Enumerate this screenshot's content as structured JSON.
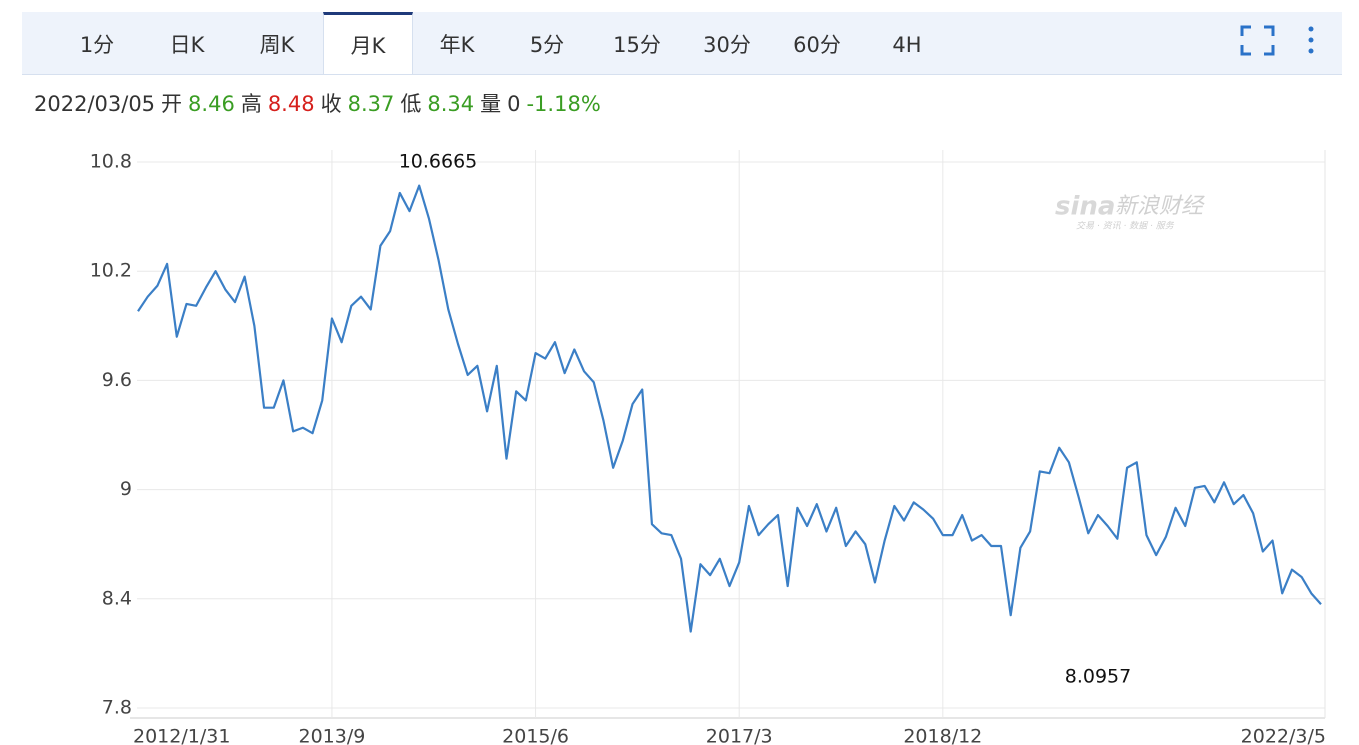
{
  "tabs": [
    "1分",
    "日K",
    "周K",
    "月K",
    "年K",
    "5分",
    "15分",
    "30分",
    "60分",
    "4H"
  ],
  "active_tab": 3,
  "info": {
    "date": "2022/03/05",
    "items": [
      {
        "label": "开",
        "value": "8.46",
        "color": "#3a9d23"
      },
      {
        "label": "高",
        "value": "8.48",
        "color": "#d6201c"
      },
      {
        "label": "收",
        "value": "8.37",
        "color": "#3a9d23"
      },
      {
        "label": "低",
        "value": "8.34",
        "color": "#3a9d23"
      },
      {
        "label": "量",
        "value": "0",
        "color": "#333333"
      }
    ],
    "change": "-1.18%",
    "change_color": "#3a9d23"
  },
  "watermark": {
    "brand": "sina",
    "name": "新浪财经",
    "tagline": "交易 · 资讯 · 数据 · 服务"
  },
  "chart_data": {
    "type": "line",
    "categories": [
      "2012/1/31",
      null,
      null,
      null,
      null,
      null,
      null,
      null,
      null,
      null,
      null,
      null,
      null,
      null,
      null,
      null,
      null,
      null,
      null,
      null,
      "2013/9",
      null,
      null,
      null,
      null,
      null,
      null,
      null,
      null,
      null,
      null,
      null,
      null,
      null,
      null,
      null,
      null,
      null,
      null,
      null,
      null,
      "2015/6",
      null,
      null,
      null,
      null,
      null,
      null,
      null,
      null,
      null,
      null,
      null,
      null,
      null,
      null,
      null,
      null,
      null,
      null,
      null,
      null,
      "2017/3",
      null,
      null,
      null,
      null,
      null,
      null,
      null,
      null,
      null,
      null,
      null,
      null,
      null,
      null,
      null,
      null,
      null,
      null,
      null,
      null,
      "2018/12",
      null,
      null,
      null,
      null,
      null,
      null,
      null,
      null,
      null,
      null,
      null,
      null,
      null,
      null,
      null,
      null,
      null,
      null,
      null,
      null,
      null,
      null,
      null,
      null,
      null,
      null,
      null,
      null,
      null,
      null,
      null,
      null,
      null,
      null,
      null,
      null,
      null,
      null,
      "2022/3/5"
    ],
    "series": [
      {
        "color": "#3b7fc6",
        "values": [
          9.98,
          10.06,
          10.12,
          10.24,
          9.84,
          10.02,
          10.01,
          10.11,
          10.2,
          10.1,
          10.03,
          10.17,
          9.9,
          9.45,
          9.45,
          9.6,
          9.32,
          9.34,
          9.31,
          9.49,
          9.94,
          9.81,
          10.01,
          10.06,
          9.99,
          10.34,
          10.42,
          10.63,
          10.53,
          10.67,
          10.49,
          10.26,
          9.99,
          9.8,
          9.63,
          9.68,
          9.43,
          9.68,
          9.17,
          9.54,
          9.49,
          9.75,
          9.72,
          9.81,
          9.64,
          9.77,
          9.65,
          9.59,
          9.38,
          9.12,
          9.27,
          9.47,
          9.55,
          8.81,
          8.76,
          8.75,
          8.62,
          8.22,
          8.59,
          8.53,
          8.62,
          8.47,
          8.6,
          8.91,
          8.75,
          8.81,
          8.86,
          8.47,
          8.9,
          8.8,
          8.92,
          8.77,
          8.9,
          8.69,
          8.77,
          8.7,
          8.49,
          8.72,
          8.91,
          8.83,
          8.93,
          8.89,
          8.84,
          8.75,
          8.75,
          8.86,
          8.72,
          8.75,
          8.69,
          8.69,
          8.31,
          8.68,
          8.77,
          9.1,
          9.09,
          9.23,
          9.15,
          8.96,
          8.76,
          8.86,
          8.8,
          8.73,
          9.12,
          9.15,
          8.75,
          8.64,
          8.74,
          8.9,
          8.8,
          9.01,
          9.02,
          8.93,
          9.04,
          8.92,
          8.97,
          8.87,
          8.66,
          8.72,
          8.43,
          8.56,
          8.52,
          8.43,
          8.37
        ]
      }
    ],
    "ylim": [
      7.8,
      10.8
    ],
    "yticks": [
      10.8,
      10.2,
      9.6,
      9,
      8.4,
      7.8
    ],
    "grid": true,
    "annotations": [
      {
        "text": "10.6665"
      },
      {
        "text": "8.0957"
      }
    ]
  }
}
